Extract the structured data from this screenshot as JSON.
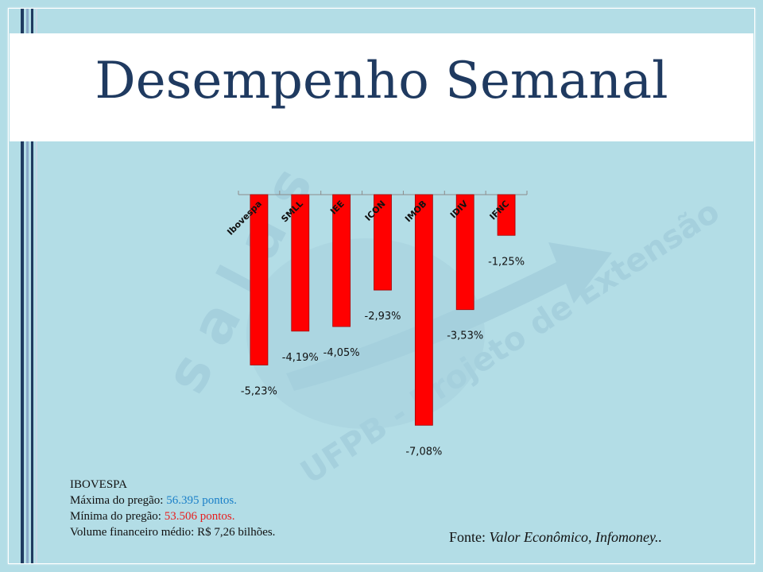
{
  "slide": {
    "title": "Desempenho Semanal"
  },
  "watermark": {
    "brand": "s a l a s",
    "line": "UFPB - Projeto de Extensão"
  },
  "chart_data": {
    "type": "bar",
    "categories": [
      "Ibovespa",
      "SMLL",
      "IEE",
      "ICON",
      "IMOB",
      "IDIV",
      "IFNC"
    ],
    "values": [
      -5.23,
      -4.19,
      -4.05,
      -2.93,
      -7.08,
      -3.53,
      -1.25
    ],
    "data_labels": [
      "-5,23%",
      "-4,19%",
      "-4,05%",
      "-2,93%",
      "-7,08%",
      "-3,53%",
      "-1,25%"
    ],
    "title": "",
    "xlabel": "",
    "ylabel": "",
    "ylim": [
      -7.08,
      0
    ],
    "bar_color": "#ff0000",
    "grid": false,
    "legend": "none"
  },
  "info": {
    "heading": "IBOVESPA",
    "max_label": "Máxima  do pregão: ",
    "max_value": "56.395 pontos.",
    "min_label": "Mínima  do pregão: ",
    "min_value": "53.506 pontos.",
    "volume": "Volume  financeiro  médio: R$ 7,26 bilhões."
  },
  "source": {
    "label": "Fonte: ",
    "value": "Valor Econômico, Infomoney.."
  },
  "colors": {
    "background": "#b3dde6",
    "title": "#1f3a60",
    "max_value": "#1a7fc8",
    "min_value": "#e81e1e"
  }
}
